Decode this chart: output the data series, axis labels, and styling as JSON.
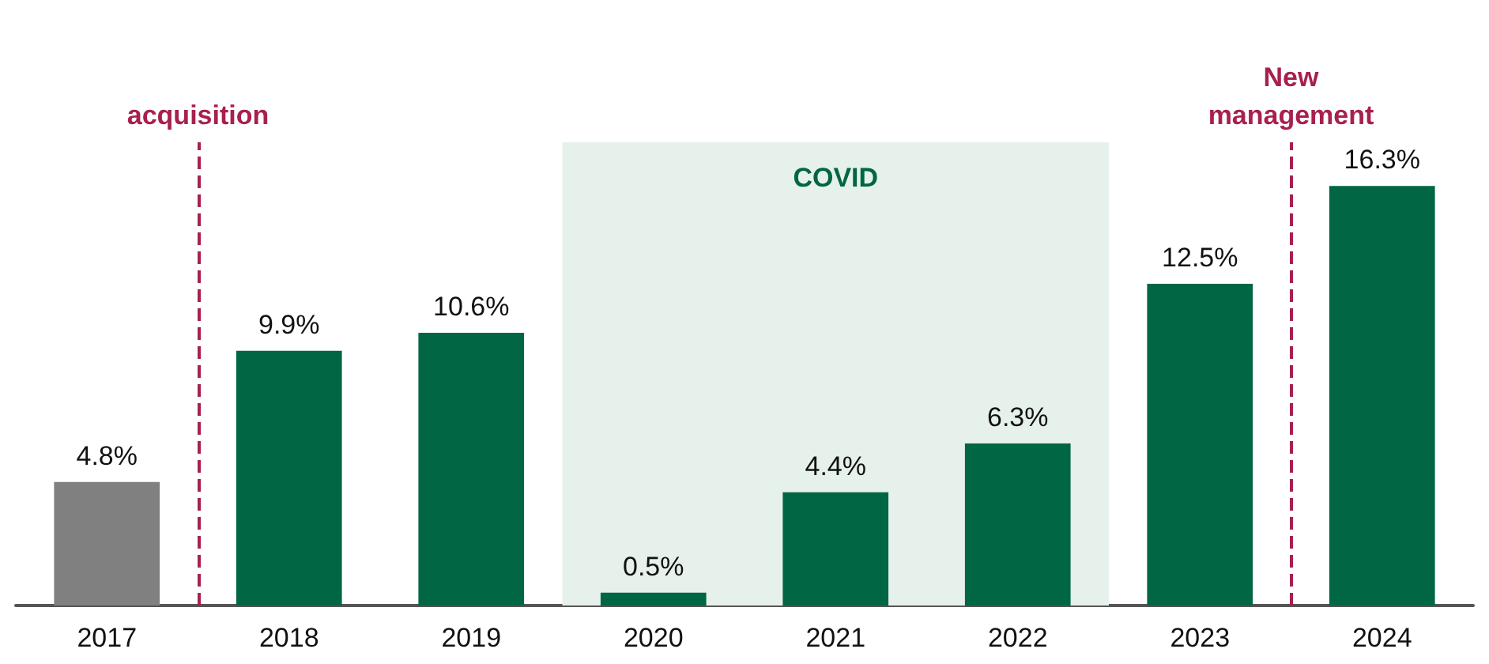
{
  "chart_data": {
    "type": "bar",
    "x": [
      2017,
      2018,
      2019,
      2020,
      2021,
      2022,
      2023,
      2024
    ],
    "values": [
      4.8,
      9.9,
      10.6,
      0.5,
      4.4,
      6.3,
      12.5,
      16.3
    ],
    "value_labels": [
      "4.8%",
      "9.9%",
      "10.6%",
      "0.5%",
      "4.4%",
      "6.3%",
      "12.5%",
      "16.3%"
    ],
    "colors": [
      "#808080",
      "#006643",
      "#006643",
      "#006643",
      "#006643",
      "#006643",
      "#006643",
      "#006643"
    ],
    "xlim": [
      2016.5,
      2024.5
    ],
    "xticks": [
      2017,
      2018,
      2019,
      2020,
      2021,
      2022,
      2023,
      2024
    ],
    "tick_labels": "x",
    "grid": false,
    "ref_lines": [
      {
        "axis": "x",
        "value": 2017.5,
        "label": "acquisition",
        "color": "#a8204e",
        "line_style": "dashed"
      },
      {
        "axis": "x",
        "value": 2023.5,
        "label": "New management",
        "color": "#a8204e",
        "line_style": "dashed"
      }
    ],
    "bands": [
      {
        "axis": "x",
        "from": 2019.5,
        "to": 2022.5,
        "label": "COVID",
        "color": "#e6f1eb"
      }
    ]
  }
}
